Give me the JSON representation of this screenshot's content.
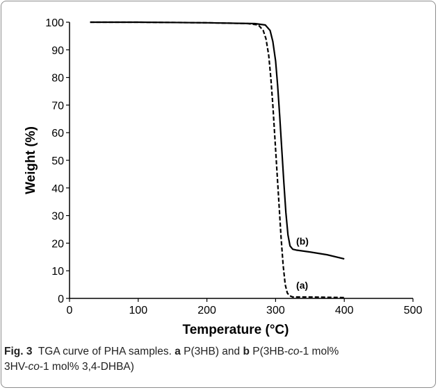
{
  "chart_data": {
    "type": "line",
    "xlabel": "Temperature (°C)",
    "ylabel": "Weight (%)",
    "xlim": [
      0,
      500
    ],
    "ylim": [
      0,
      100
    ],
    "xticks": [
      0,
      100,
      200,
      300,
      400,
      500
    ],
    "yticks": [
      0,
      10,
      20,
      30,
      40,
      50,
      60,
      70,
      80,
      90,
      100
    ],
    "grid": false,
    "legend": "none",
    "series": [
      {
        "name": "(a)",
        "style": "dashed",
        "color": "#000000",
        "x": [
          30,
          100,
          200,
          260,
          275,
          282,
          286,
          290,
          293,
          296,
          299,
          302,
          305,
          308,
          311,
          314,
          317,
          320,
          325,
          350,
          400
        ],
        "y": [
          100,
          100,
          99.8,
          99.5,
          99,
          97,
          94,
          88,
          80,
          70,
          58,
          46,
          34,
          22,
          12,
          5,
          2,
          1,
          0.5,
          0.5,
          0.3
        ]
      },
      {
        "name": "(b)",
        "style": "solid",
        "color": "#000000",
        "x": [
          30,
          100,
          200,
          270,
          285,
          292,
          296,
          300,
          303,
          306,
          309,
          312,
          315,
          318,
          321,
          325,
          330,
          350,
          375,
          400
        ],
        "y": [
          100,
          100,
          99.8,
          99.5,
          99,
          97,
          93,
          86,
          77,
          66,
          54,
          42,
          31,
          23,
          19,
          17.8,
          17.5,
          16.8,
          15.8,
          14.3
        ]
      }
    ]
  },
  "caption": {
    "fig_label": "Fig. 3",
    "text1": "TGA curve of PHA samples. ",
    "a_label": "a",
    "text2": " P(3HB) and ",
    "b_label": "b",
    "text3": " P(3HB-",
    "co1": "co",
    "text4": "-1 mol%",
    "line2a": "3HV-",
    "co2": "co",
    "text5": "-1 mol% 3,4-DHBA)"
  }
}
